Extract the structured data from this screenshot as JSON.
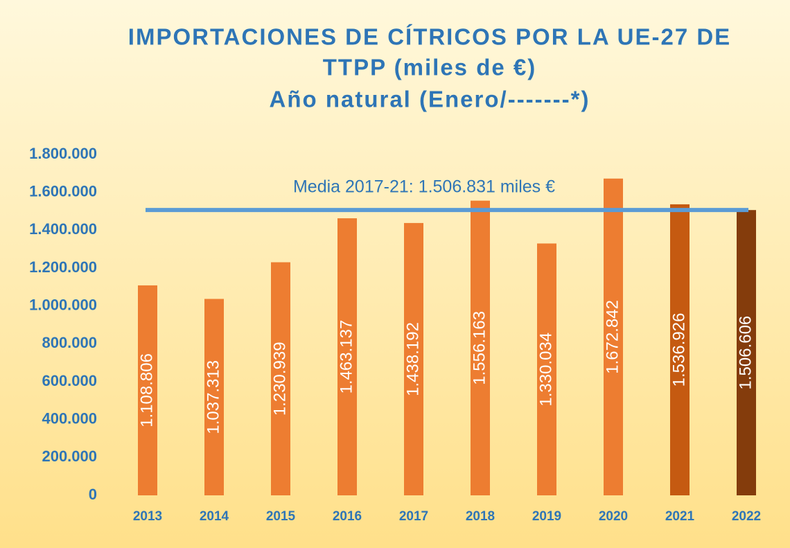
{
  "chart_data": {
    "type": "bar",
    "title": [
      "IMPORTACIONES DE CÍTRICOS POR LA UE-27 DE",
      "TTPP (miles de €)",
      "Año natural (Enero/-------*)"
    ],
    "categories": [
      "2013",
      "2014",
      "2015",
      "2016",
      "2017",
      "2018",
      "2019",
      "2020",
      "2021",
      "2022"
    ],
    "values": [
      1108806,
      1037313,
      1230939,
      1463137,
      1438192,
      1556163,
      1330034,
      1672842,
      1536926,
      1506606
    ],
    "value_labels": [
      "1.108.806",
      "1.037.313",
      "1.230.939",
      "1.463.137",
      "1.438.192",
      "1.556.163",
      "1.330.034",
      "1.672.842",
      "1.536.926",
      "1.506.606"
    ],
    "colors": [
      "#ed7d31",
      "#ed7d31",
      "#ed7d31",
      "#ed7d31",
      "#ed7d31",
      "#ed7d31",
      "#ed7d31",
      "#ed7d31",
      "#c55a11",
      "#843c0c"
    ],
    "ylim": [
      0,
      1800000
    ],
    "yticks": [
      0,
      {
        "value": 200000,
        "label": "200.000"
      },
      {
        "value": 400000,
        "label": "400.000"
      },
      {
        "value": 600000,
        "label": "600.000"
      },
      {
        "value": 800000,
        "label": "800.000"
      },
      {
        "value": 1000000,
        "label": "1.000.000"
      },
      {
        "value": 1200000,
        "label": "1.200.000"
      },
      {
        "value": 1400000,
        "label": "1.400.000"
      },
      {
        "value": 1600000,
        "label": "1.600.000"
      },
      {
        "value": 1800000,
        "label": "1.800.000"
      }
    ],
    "reference_line": {
      "value": 1506831,
      "label": "Media 2017-21: 1.506.831 miles €",
      "color": "#5b9bd5"
    }
  }
}
